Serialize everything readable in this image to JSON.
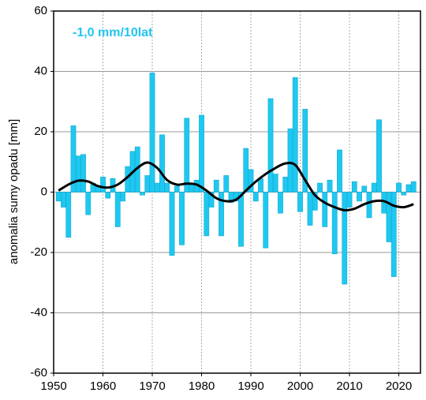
{
  "chart_data": {
    "type": "bar",
    "annotation": "-1,0 mm/10lat",
    "y_label": "anomalia sumy opadu [mm]",
    "x": [
      1951,
      1952,
      1953,
      1954,
      1955,
      1956,
      1957,
      1958,
      1959,
      1960,
      1961,
      1962,
      1963,
      1964,
      1965,
      1966,
      1967,
      1968,
      1969,
      1970,
      1971,
      1972,
      1973,
      1974,
      1975,
      1976,
      1977,
      1978,
      1979,
      1980,
      1981,
      1982,
      1983,
      1984,
      1985,
      1986,
      1987,
      1988,
      1989,
      1990,
      1991,
      1992,
      1993,
      1994,
      1995,
      1996,
      1997,
      1998,
      1999,
      2000,
      2001,
      2002,
      2003,
      2004,
      2005,
      2006,
      2007,
      2008,
      2009,
      2010,
      2011,
      2012,
      2013,
      2014,
      2015,
      2016,
      2017,
      2018,
      2019,
      2020,
      2021,
      2022,
      2023
    ],
    "series": [
      {
        "color": "#1ec8f0",
        "values": [
          -3,
          -5,
          -15,
          22,
          12,
          12.5,
          -7.5,
          3,
          2,
          5,
          -2,
          4.5,
          -11.5,
          -3,
          8.5,
          13.5,
          15,
          -1,
          5.5,
          39.5,
          3,
          19,
          3,
          -21,
          2,
          -17.5,
          24.5,
          3,
          4,
          25.5,
          -14.5,
          -5,
          4,
          -14.5,
          5.5,
          -3.5,
          -3,
          -18,
          14.5,
          7.5,
          -3,
          4.5,
          -18.5,
          31,
          6,
          -7,
          5,
          21,
          38,
          -6.5,
          27.5,
          -11,
          -6,
          3,
          -11.5,
          4,
          -20.5,
          14,
          -30.5,
          -5,
          3.5,
          -3,
          2,
          -8.5,
          3,
          24,
          -7,
          -16.5,
          -28,
          3,
          -1,
          2.5,
          3.5
        ]
      }
    ],
    "trend": {
      "color": "#000000",
      "x": [
        1951,
        1953,
        1955,
        1957,
        1959,
        1961,
        1963,
        1965,
        1967,
        1969,
        1971,
        1973,
        1975,
        1977,
        1979,
        1981,
        1983,
        1985,
        1987,
        1989,
        1991,
        1993,
        1995,
        1997,
        1999,
        2001,
        2003,
        2005,
        2007,
        2009,
        2011,
        2013,
        2015,
        2017,
        2019,
        2021,
        2023
      ],
      "values": [
        0.5,
        2.5,
        3.8,
        3.5,
        2,
        1.5,
        2.5,
        5,
        8,
        9.8,
        8,
        4,
        2.5,
        2.8,
        2.5,
        0.5,
        -2,
        -3,
        -2.5,
        0.5,
        3.5,
        6,
        8,
        9.5,
        9,
        4,
        -1,
        -3.5,
        -5,
        -6,
        -5.5,
        -4,
        -3,
        -3,
        -4.5,
        -5,
        -4
      ]
    },
    "xlim": [
      1950,
      2024.4
    ],
    "xticks": [
      1950,
      1960,
      1970,
      1980,
      1990,
      2000,
      2010,
      2020
    ],
    "ylim": [
      -60,
      60
    ],
    "yticks": [
      -60,
      -40,
      -20,
      0,
      20,
      40,
      60
    ],
    "grid": true
  }
}
